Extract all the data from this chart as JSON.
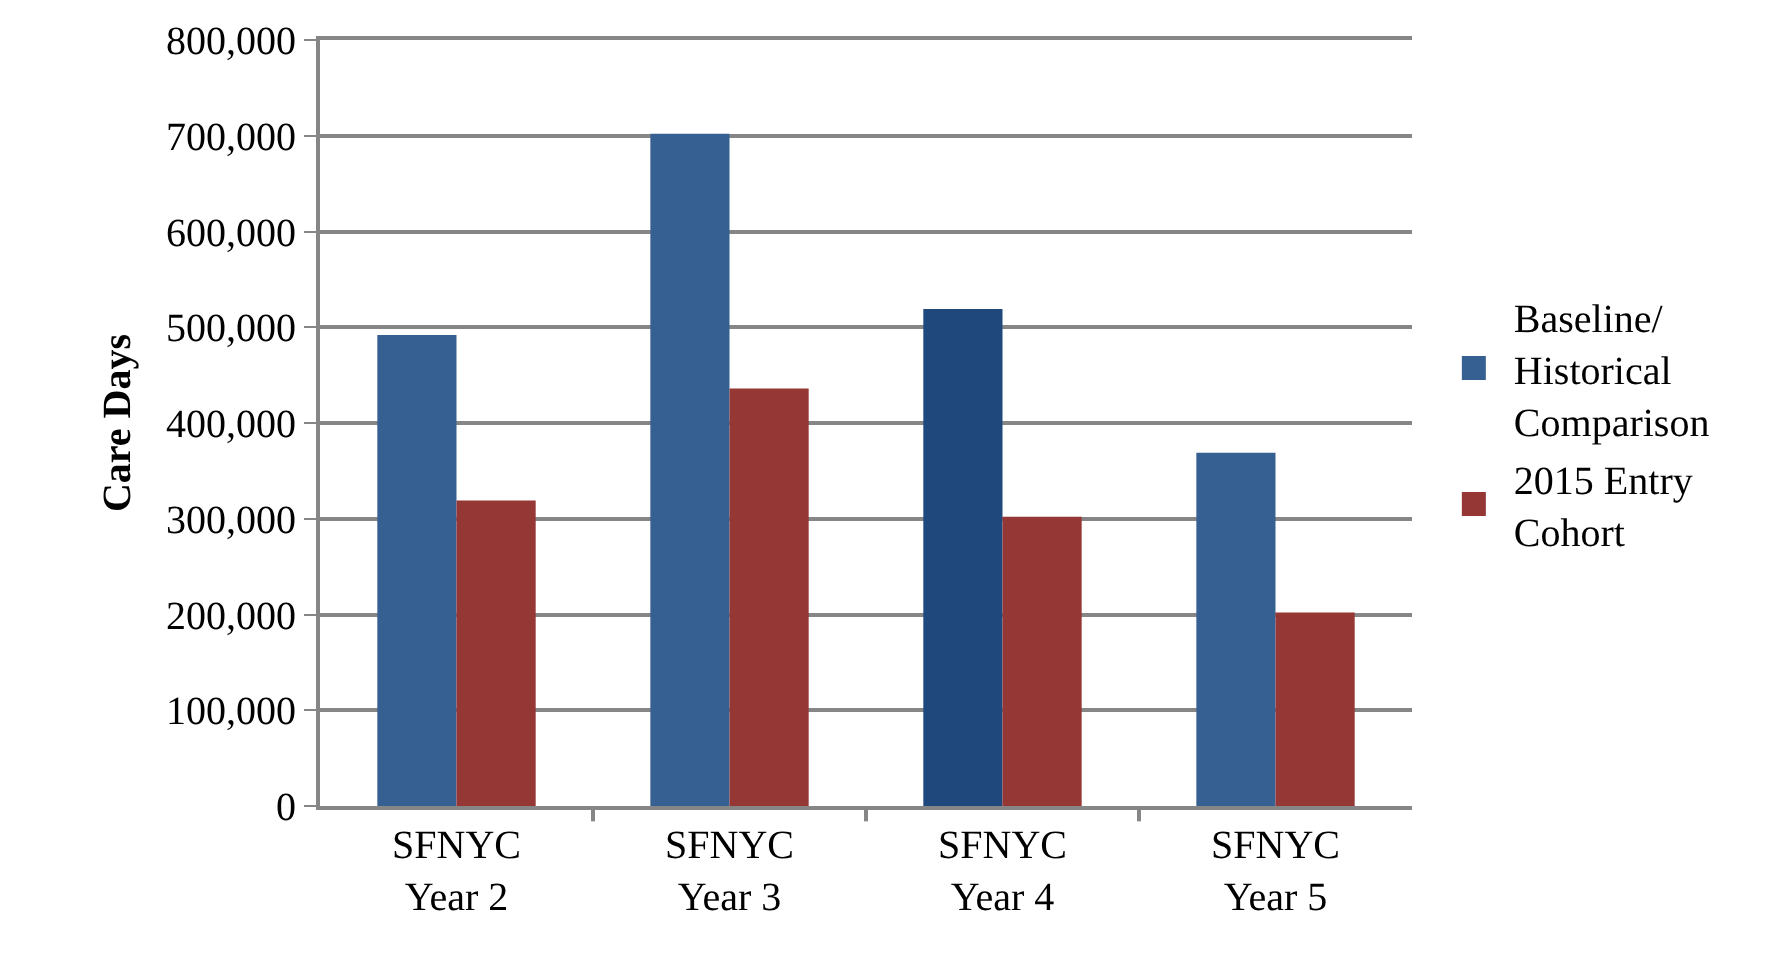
{
  "chart_data": {
    "type": "bar",
    "ylabel": "Care Days",
    "categories": [
      "SFNYC\nYear 2",
      "SFNYC\nYear 3",
      "SFNYC\nYear 4",
      "SFNYC\nYear 5"
    ],
    "series": [
      {
        "name": "Baseline/\nHistorical\nComparison",
        "color": "#376092",
        "colors": [
          null,
          null,
          "#1f497d",
          null
        ],
        "values": [
          492000,
          702000,
          519000,
          369000
        ]
      },
      {
        "name": "2015 Entry\nCohort",
        "color": "#953735",
        "values": [
          319000,
          436000,
          302000,
          202000
        ]
      }
    ],
    "ylim": [
      0,
      800000
    ],
    "yticks": [
      {
        "value": 0,
        "label": "0"
      },
      {
        "value": 100000,
        "label": "100,000"
      },
      {
        "value": 200000,
        "label": "200,000"
      },
      {
        "value": 300000,
        "label": "300,000"
      },
      {
        "value": 400000,
        "label": "400,000"
      },
      {
        "value": 500000,
        "label": "500,000"
      },
      {
        "value": 600000,
        "label": "600,000"
      },
      {
        "value": 700000,
        "label": "700,000"
      },
      {
        "value": 800000,
        "label": "800,000"
      }
    ],
    "grid": "y",
    "legend": "right"
  }
}
